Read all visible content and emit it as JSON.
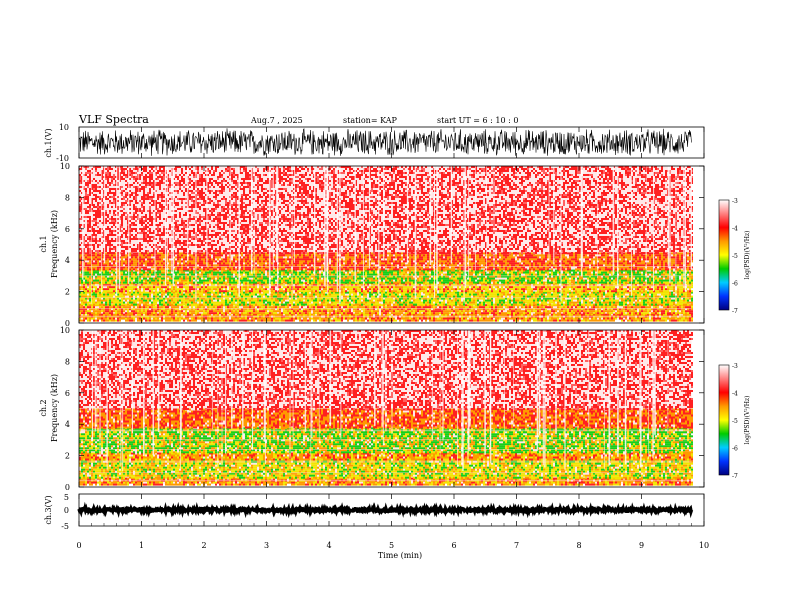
{
  "header": {
    "title": "VLF Spectra",
    "date": "Aug.7  , 2025",
    "station": "station= KAP",
    "start": "start  UT  =   6  : 10 : 0"
  },
  "colors": {
    "background": "#ffffff",
    "axis": "#000000",
    "spec_red": "#ff2020",
    "spec_orange": "#ff9a00",
    "spec_yellow": "#f2e600",
    "spec_green": "#18d018"
  },
  "chart_data": [
    {
      "type": "line",
      "name": "ch1-waveform",
      "ylabel": "ch.1(V)",
      "ylim": [
        -10,
        10
      ],
      "y_ticks": [
        "10",
        "-10"
      ],
      "x_range_min": [
        0,
        9.8
      ]
    },
    {
      "type": "heatmap",
      "name": "ch1-spectrogram",
      "ylabel_line1": "ch.1",
      "ylabel_line2": "Frequency  (kHz)",
      "ylim": [
        0,
        10
      ],
      "y_ticks": [
        "0",
        "2",
        "4",
        "6",
        "8",
        "10"
      ],
      "x_range_min": [
        0,
        9.8
      ],
      "bands": [
        {
          "from_khz": 0.2,
          "to_khz": 0.6,
          "level": "orange"
        },
        {
          "from_khz": 0.6,
          "to_khz": 1.2,
          "level": "orange-yellow"
        },
        {
          "from_khz": 1.2,
          "to_khz": 2.0,
          "level": "yellow-green"
        },
        {
          "from_khz": 2.0,
          "to_khz": 2.6,
          "level": "yellow-orange"
        },
        {
          "from_khz": 2.6,
          "to_khz": 3.4,
          "level": "green-yellow"
        },
        {
          "from_khz": 3.4,
          "to_khz": 4.5,
          "level": "orange-red"
        },
        {
          "from_khz": 4.5,
          "to_khz": 10.0,
          "level": "red"
        }
      ],
      "colorbar": {
        "label": "log(PSD)(V²/Hz)",
        "ticks": [
          "-3",
          "-4",
          "-5",
          "-6",
          "-7"
        ],
        "range": [
          -7,
          -3
        ]
      }
    },
    {
      "type": "heatmap",
      "name": "ch2-spectrogram",
      "ylabel_line1": "ch.2",
      "ylabel_line2": "Frequency  (kHz)",
      "ylim": [
        0,
        10
      ],
      "y_ticks": [
        "0",
        "2",
        "4",
        "6",
        "8",
        "10"
      ],
      "x_range_min": [
        0,
        9.8
      ],
      "bands": [
        {
          "from_khz": 0.2,
          "to_khz": 0.6,
          "level": "orange"
        },
        {
          "from_khz": 0.6,
          "to_khz": 1.8,
          "level": "yellow-green"
        },
        {
          "from_khz": 1.8,
          "to_khz": 2.2,
          "level": "orange"
        },
        {
          "from_khz": 2.2,
          "to_khz": 3.8,
          "level": "green-yellow"
        },
        {
          "from_khz": 3.8,
          "to_khz": 5.0,
          "level": "orange-red"
        },
        {
          "from_khz": 5.0,
          "to_khz": 10.0,
          "level": "red"
        }
      ],
      "colorbar": {
        "label": "log(PSD)(V²/Hz)",
        "ticks": [
          "-3",
          "-4",
          "-5",
          "-6",
          "-7"
        ],
        "range": [
          -7,
          -3
        ]
      }
    },
    {
      "type": "line",
      "name": "ch3-waveform",
      "ylabel": "ch.3(V)",
      "ylim": [
        -5,
        5
      ],
      "y_ticks": [
        "5",
        "0",
        "-5"
      ],
      "level_v": 0,
      "x_range_min": [
        0,
        9.8
      ]
    }
  ],
  "x_axis": {
    "xlabel": "Time  (min)",
    "xlim": [
      0,
      10
    ],
    "ticks": [
      "0",
      "1",
      "2",
      "3",
      "4",
      "5",
      "6",
      "7",
      "8",
      "9",
      "10"
    ]
  }
}
